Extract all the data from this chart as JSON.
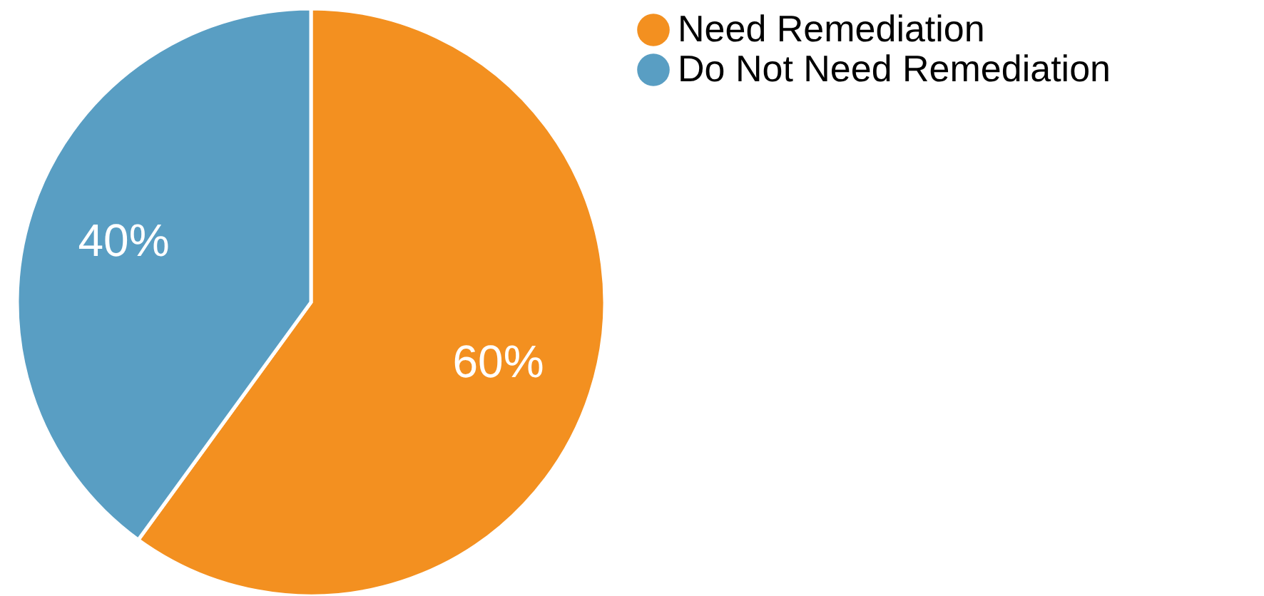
{
  "chart_data": {
    "type": "pie",
    "categories": [
      "Need Remediation",
      "Do Not Need Remediation"
    ],
    "values": [
      60,
      40
    ],
    "colors": [
      "#f39020",
      "#599ec3"
    ],
    "value_labels": [
      "60%",
      "40%"
    ],
    "legend": "top right"
  }
}
